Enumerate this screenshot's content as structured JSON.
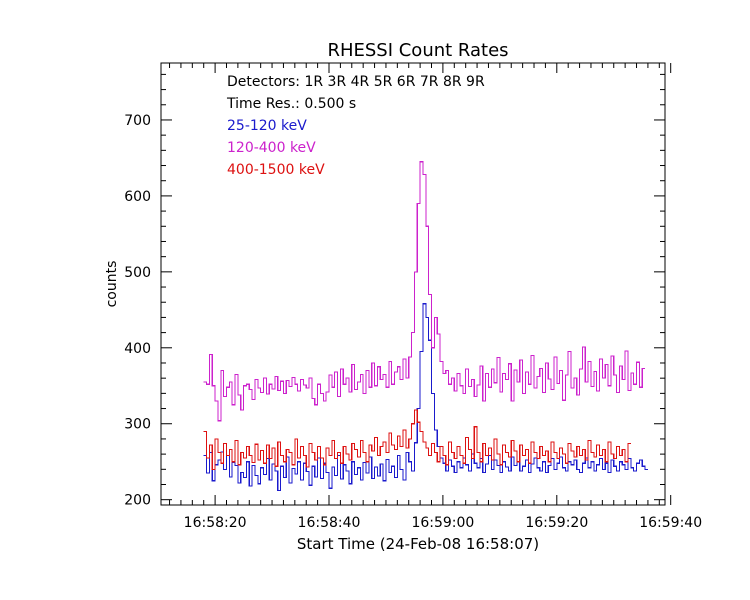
{
  "chart_data": {
    "type": "line",
    "title": "RHESSI Count Rates",
    "xlabel": "Start Time (24-Feb-08 16:58:07)",
    "ylabel": "counts",
    "x_unit": "seconds after 16:58:00",
    "xlim": [
      10.5,
      99
    ],
    "ylim": [
      193,
      775
    ],
    "x_ticks": [
      20,
      40,
      60,
      80,
      100
    ],
    "x_tick_labels": [
      "16:58:20",
      "16:58:40",
      "16:59:00",
      "16:59:20",
      "16:59:40"
    ],
    "y_ticks": [
      200,
      300,
      400,
      500,
      600,
      700
    ],
    "y_tick_labels": [
      "200",
      "300",
      "400",
      "500",
      "600",
      "700"
    ],
    "grid": false,
    "legend": "top-left",
    "annotations": [
      "Detectors:  1R 3R 4R 5R 6R 7R 8R 9R",
      "Time Res.: 0.500 s"
    ],
    "x_start": 18.0,
    "x_step": 0.5,
    "series": [
      {
        "name": "25-120 keV",
        "color": "#1a1acc",
        "values": [
          258,
          235,
          262,
          225,
          246,
          252,
          263,
          240,
          258,
          230,
          249,
          245,
          222,
          236,
          229,
          250,
          218,
          245,
          232,
          221,
          242,
          233,
          254,
          226,
          247,
          238,
          212,
          244,
          229,
          256,
          222,
          241,
          234,
          250,
          226,
          248,
          237,
          219,
          244,
          230,
          255,
          228,
          248,
          236,
          215,
          243,
          232,
          258,
          227,
          246,
          238,
          221,
          250,
          233,
          242,
          226,
          249,
          235,
          256,
          228,
          243,
          231,
          247,
          225,
          253,
          236,
          244,
          229,
          258,
          240,
          226,
          262,
          250,
          238,
          275,
          320,
          395,
          458,
          440,
          410,
          340,
          292,
          270,
          255,
          248,
          238,
          252,
          244,
          236,
          250,
          242,
          255,
          246,
          238,
          260,
          248,
          242,
          254,
          236,
          247,
          258,
          240,
          252,
          245,
          236,
          250,
          243,
          238,
          256,
          245,
          250,
          238,
          244,
          252,
          236,
          247,
          255,
          242,
          238,
          250,
          236,
          245,
          254,
          240,
          248,
          256,
          242,
          238,
          250,
          246,
          252,
          240,
          236,
          248,
          255,
          242,
          250,
          238,
          246,
          254,
          240,
          248,
          236,
          252,
          244,
          238,
          250,
          246,
          240,
          254,
          242,
          238,
          248,
          252,
          244,
          240
        ]
      },
      {
        "name": "120-400 keV",
        "color": "#cc22cc",
        "values": [
          355,
          352,
          391,
          350,
          330,
          304,
          370,
          336,
          348,
          355,
          325,
          365,
          338,
          318,
          350,
          352,
          345,
          332,
          358,
          347,
          341,
          360,
          339,
          352,
          346,
          362,
          344,
          356,
          340,
          357,
          349,
          361,
          352,
          343,
          358,
          351,
          347,
          360,
          333,
          325,
          352,
          340,
          330,
          342,
          364,
          348,
          368,
          336,
          372,
          352,
          360,
          342,
          378,
          345,
          355,
          365,
          340,
          370,
          348,
          380,
          350,
          375,
          358,
          365,
          348,
          382,
          352,
          368,
          375,
          358,
          385,
          360,
          388,
          420,
          500,
          590,
          645,
          628,
          560,
          470,
          400,
          440,
          418,
          382,
          366,
          370,
          352,
          360,
          343,
          366,
          350,
          340,
          372,
          349,
          358,
          336,
          351,
          376,
          330,
          366,
          348,
          372,
          354,
          387,
          342,
          366,
          358,
          379,
          330,
          371,
          355,
          384,
          340,
          368,
          352,
          390,
          347,
          362,
          373,
          341,
          380,
          359,
          345,
          388,
          353,
          370,
          331,
          364,
          395,
          347,
          360,
          338,
          372,
          401,
          355,
          382,
          349,
          369,
          343,
          385,
          360,
          378,
          350,
          389,
          364,
          341,
          376,
          358,
          396,
          344,
          367,
          352,
          381,
          348,
          373
        ]
      },
      {
        "name": "400-1500 keV",
        "color": "#dd1111",
        "values": [
          290,
          255,
          272,
          240,
          280,
          262,
          248,
          274,
          258,
          266,
          250,
          278,
          246,
          262,
          255,
          270,
          258,
          249,
          273,
          252,
          265,
          248,
          272,
          254,
          268,
          244,
          276,
          258,
          250,
          266,
          262,
          246,
          280,
          255,
          270,
          258,
          243,
          274,
          262,
          252,
          270,
          255,
          246,
          268,
          258,
          278,
          254,
          262,
          248,
          270,
          260,
          252,
          274,
          266,
          256,
          278,
          262,
          250,
          272,
          264,
          282,
          258,
          270,
          276,
          262,
          288,
          272,
          266,
          284,
          270,
          292,
          268,
          280,
          300,
          318,
          302,
          290,
          276,
          268,
          258,
          274,
          262,
          250,
          270,
          258,
          246,
          276,
          262,
          254,
          270,
          258,
          248,
          282,
          266,
          254,
          296,
          262,
          250,
          274,
          258,
          268,
          252,
          280,
          260,
          246,
          272,
          262,
          256,
          278,
          264,
          250,
          272,
          258,
          266,
          248,
          276,
          262,
          254,
          270,
          258,
          264,
          250,
          276,
          262,
          254,
          268,
          260,
          248,
          274,
          264,
          256,
          270,
          258,
          266,
          252,
          278,
          262,
          256,
          272,
          258,
          266,
          250,
          276,
          260,
          254,
          270,
          258,
          266,
          250,
          274
        ]
      }
    ]
  }
}
